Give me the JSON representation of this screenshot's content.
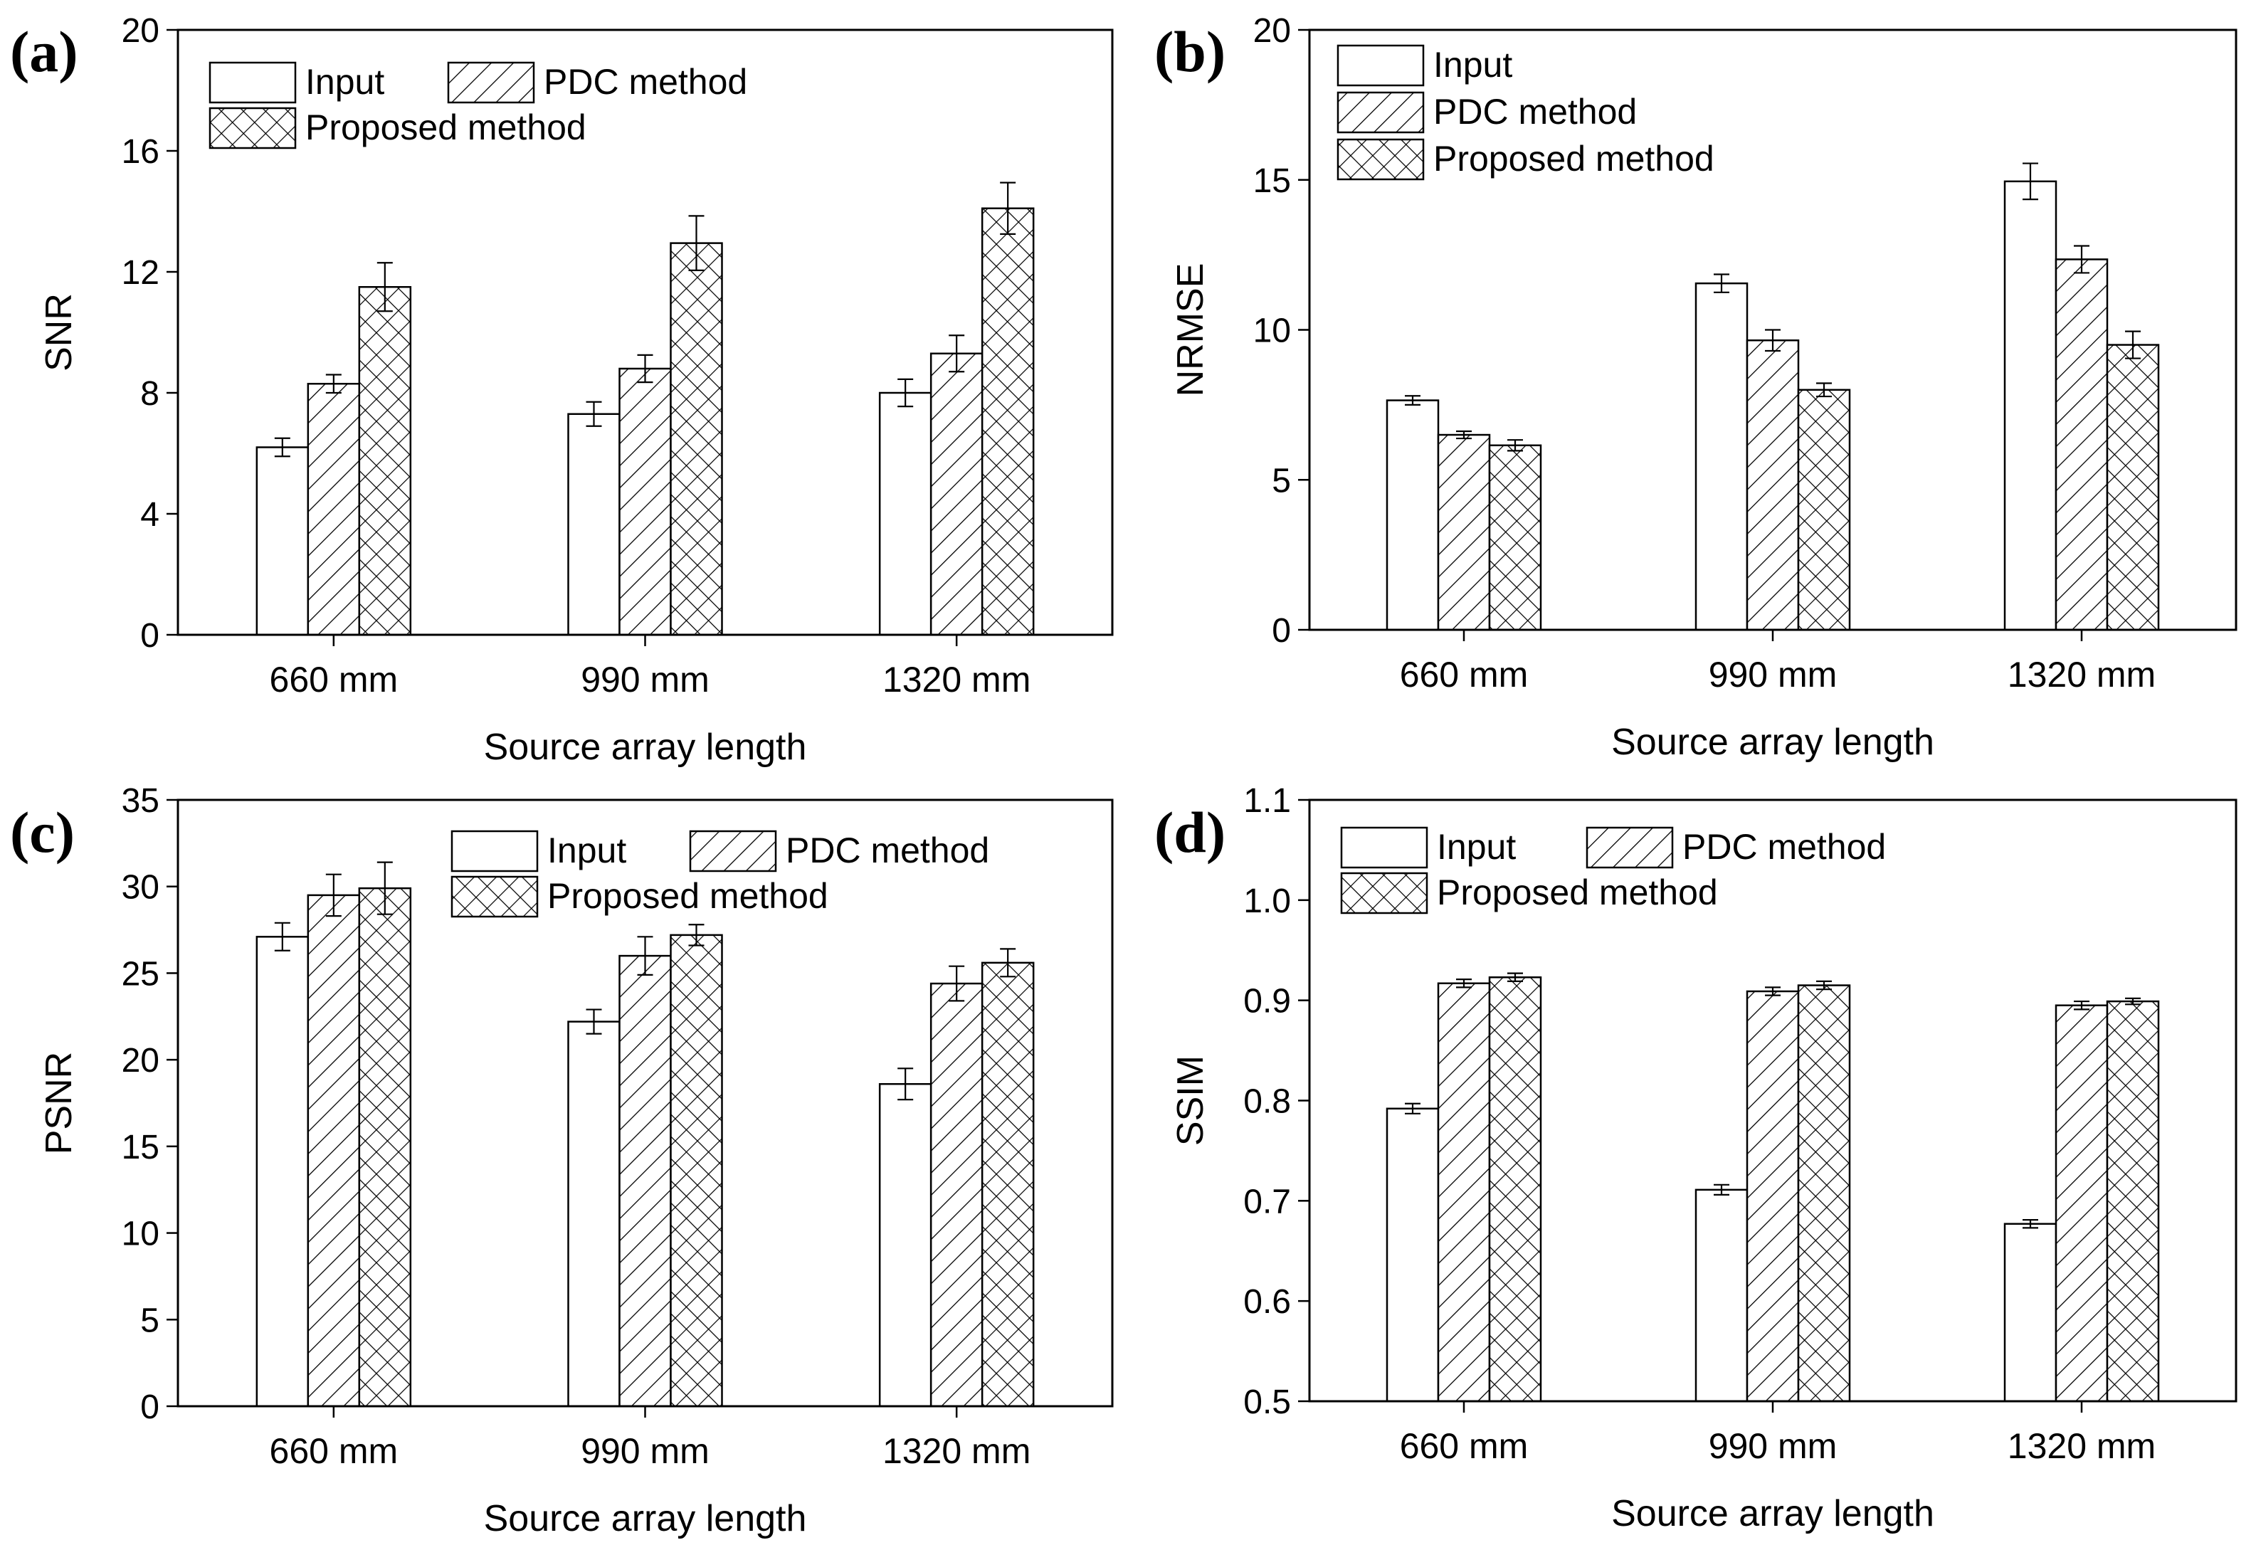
{
  "chart_data": [
    {
      "type": "bar",
      "panel_label": "(a)",
      "categories": [
        "660 mm",
        "990 mm",
        "1320 mm"
      ],
      "series": [
        {
          "name": "Input",
          "values": [
            6.2,
            7.3,
            8.0
          ],
          "errors": [
            0.3,
            0.4,
            0.45
          ]
        },
        {
          "name": "PDC method",
          "values": [
            8.3,
            8.8,
            9.3
          ],
          "errors": [
            0.3,
            0.45,
            0.6
          ]
        },
        {
          "name": "Proposed method",
          "values": [
            11.5,
            12.95,
            14.1
          ],
          "errors": [
            0.8,
            0.9,
            0.85
          ]
        }
      ],
      "xlabel": "Source array length",
      "ylabel": "SNR",
      "ylim": [
        0,
        20
      ],
      "yticks": [
        0,
        4,
        8,
        12,
        16,
        20
      ],
      "ytick_labels": [
        "0",
        "4",
        "8",
        "12",
        "16",
        "20"
      ],
      "legend": {
        "placement": "top-left",
        "layout": "two-column"
      }
    },
    {
      "type": "bar",
      "panel_label": "(b)",
      "categories": [
        "660 mm",
        "990 mm",
        "1320 mm"
      ],
      "series": [
        {
          "name": "Input",
          "values": [
            7.65,
            11.55,
            14.95
          ],
          "errors": [
            0.15,
            0.3,
            0.6
          ]
        },
        {
          "name": "PDC method",
          "values": [
            6.5,
            9.65,
            12.35
          ],
          "errors": [
            0.12,
            0.35,
            0.45
          ]
        },
        {
          "name": "Proposed method",
          "values": [
            6.15,
            8.0,
            9.5
          ],
          "errors": [
            0.18,
            0.22,
            0.45
          ]
        }
      ],
      "xlabel": "Source array length",
      "ylabel": "NRMSE",
      "ylim": [
        0,
        20
      ],
      "yticks": [
        0,
        5,
        10,
        15,
        20
      ],
      "ytick_labels": [
        "0",
        "5",
        "10",
        "15",
        "20"
      ],
      "legend": {
        "placement": "top-left",
        "layout": "one-column"
      }
    },
    {
      "type": "bar",
      "panel_label": "(c)",
      "categories": [
        "660 mm",
        "990 mm",
        "1320 mm"
      ],
      "series": [
        {
          "name": "Input",
          "values": [
            27.1,
            22.2,
            18.6
          ],
          "errors": [
            0.8,
            0.7,
            0.9
          ]
        },
        {
          "name": "PDC method",
          "values": [
            29.5,
            26.0,
            24.4
          ],
          "errors": [
            1.2,
            1.1,
            1.0
          ]
        },
        {
          "name": "Proposed method",
          "values": [
            29.9,
            27.2,
            25.6
          ],
          "errors": [
            1.5,
            0.6,
            0.8
          ]
        }
      ],
      "xlabel": "Source array length",
      "ylabel": "PSNR",
      "ylim": [
        0,
        35
      ],
      "yticks": [
        0,
        5,
        10,
        15,
        20,
        25,
        30,
        35
      ],
      "ytick_labels": [
        "0",
        "5",
        "10",
        "15",
        "20",
        "25",
        "30",
        "35"
      ],
      "legend": {
        "placement": "top-right",
        "layout": "two-column"
      }
    },
    {
      "type": "bar",
      "panel_label": "(d)",
      "categories": [
        "660 mm",
        "990 mm",
        "1320 mm"
      ],
      "series": [
        {
          "name": "Input",
          "values": [
            0.792,
            0.711,
            0.677
          ],
          "errors": [
            0.005,
            0.005,
            0.004
          ]
        },
        {
          "name": "PDC method",
          "values": [
            0.917,
            0.909,
            0.895
          ],
          "errors": [
            0.004,
            0.004,
            0.004
          ]
        },
        {
          "name": "Proposed method",
          "values": [
            0.923,
            0.915,
            0.899
          ],
          "errors": [
            0.004,
            0.004,
            0.003
          ]
        }
      ],
      "xlabel": "Source array length",
      "ylabel": "SSIM",
      "ylim": [
        0.5,
        1.1
      ],
      "yticks": [
        0.5,
        0.6,
        0.7,
        0.8,
        0.9,
        1.0,
        1.1
      ],
      "ytick_labels": [
        "0.5",
        "0.6",
        "0.7",
        "0.8",
        "0.9",
        "1.0",
        "1.1"
      ],
      "legend": {
        "placement": "top-left",
        "layout": "two-column"
      }
    }
  ]
}
